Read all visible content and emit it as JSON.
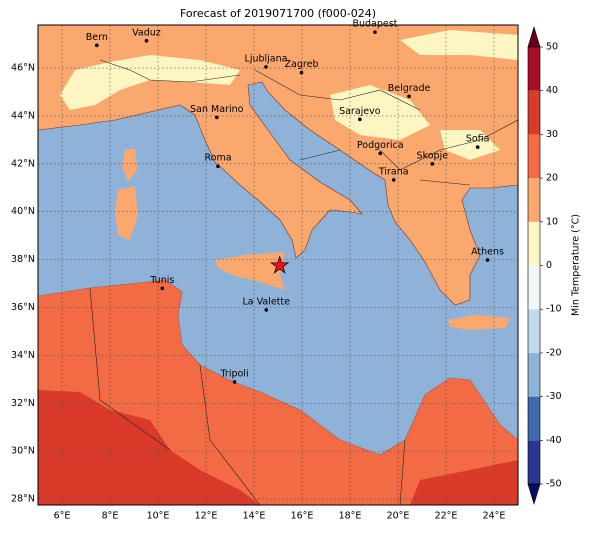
{
  "title": "Forecast of 2019071700 (f000-024)",
  "map": {
    "lonlim": [
      5,
      25
    ],
    "latlim": [
      27.75,
      47.8
    ],
    "xticks": [
      {
        "value": 6,
        "label": "6°E"
      },
      {
        "value": 8,
        "label": "8°E"
      },
      {
        "value": 10,
        "label": "10°E"
      },
      {
        "value": 12,
        "label": "12°E"
      },
      {
        "value": 14,
        "label": "14°E"
      },
      {
        "value": 16,
        "label": "16°E"
      },
      {
        "value": 18,
        "label": "18°E"
      },
      {
        "value": 20,
        "label": "20°E"
      },
      {
        "value": 22,
        "label": "22°E"
      },
      {
        "value": 24,
        "label": "24°E"
      }
    ],
    "yticks": [
      {
        "value": 28,
        "label": "28°N"
      },
      {
        "value": 30,
        "label": "30°N"
      },
      {
        "value": 32,
        "label": "32°N"
      },
      {
        "value": 34,
        "label": "34°N"
      },
      {
        "value": 36,
        "label": "36°N"
      },
      {
        "value": 38,
        "label": "38°N"
      },
      {
        "value": 40,
        "label": "40°N"
      },
      {
        "value": 42,
        "label": "42°N"
      },
      {
        "value": 44,
        "label": "44°N"
      },
      {
        "value": 46,
        "label": "46°N"
      }
    ],
    "cities": [
      {
        "name": "Bern",
        "lon": 7.45,
        "lat": 46.95
      },
      {
        "name": "Vaduz",
        "lon": 9.52,
        "lat": 47.14
      },
      {
        "name": "Budapest",
        "lon": 19.04,
        "lat": 47.5
      },
      {
        "name": "Ljubljana",
        "lon": 14.5,
        "lat": 46.05
      },
      {
        "name": "Zagreb",
        "lon": 15.98,
        "lat": 45.81
      },
      {
        "name": "Belgrade",
        "lon": 20.46,
        "lat": 44.82
      },
      {
        "name": "San Marino",
        "lon": 12.45,
        "lat": 43.94
      },
      {
        "name": "Sarajevo",
        "lon": 18.41,
        "lat": 43.86
      },
      {
        "name": "Sofia",
        "lon": 23.32,
        "lat": 42.7
      },
      {
        "name": "Roma",
        "lon": 12.5,
        "lat": 41.9
      },
      {
        "name": "Podgorica",
        "lon": 19.26,
        "lat": 42.44
      },
      {
        "name": "Skopje",
        "lon": 21.43,
        "lat": 42.0
      },
      {
        "name": "Tirana",
        "lon": 19.82,
        "lat": 41.33
      },
      {
        "name": "Athens",
        "lon": 23.73,
        "lat": 37.98
      },
      {
        "name": "Tunis",
        "lon": 10.18,
        "lat": 36.8
      },
      {
        "name": "La Valette",
        "lon": 14.51,
        "lat": 35.9
      },
      {
        "name": "Tripoli",
        "lon": 13.19,
        "lat": 32.89
      }
    ],
    "marker": {
      "lon": 15.07,
      "lat": 37.75
    }
  },
  "colorbar": {
    "label": "Min Temperature (°C)",
    "ticks": [
      -50,
      -40,
      -30,
      -20,
      -10,
      0,
      10,
      20,
      30,
      40,
      50
    ],
    "colors": [
      "#2c3590",
      "#4069ad",
      "#8fb3d8",
      "#c0dcec",
      "#eef8f8",
      "#fef6c2",
      "#fba86f",
      "#f26b45",
      "#d93a2a",
      "#a80d26"
    ]
  }
}
